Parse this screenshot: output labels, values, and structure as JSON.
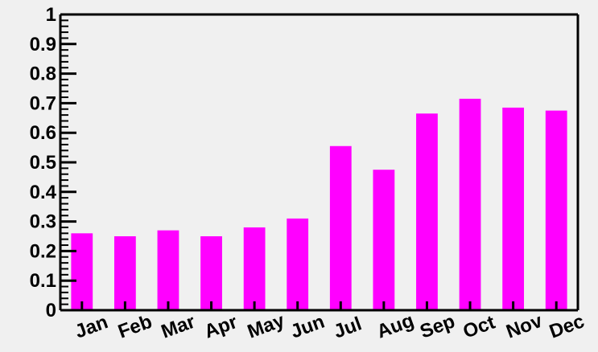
{
  "chart_data": {
    "type": "bar",
    "title": "",
    "xlabel": "",
    "ylabel": "",
    "categories": [
      "Jan",
      "Feb",
      "Mar",
      "Apr",
      "May",
      "Jun",
      "Jul",
      "Aug",
      "Sep",
      "Oct",
      "Nov",
      "Dec"
    ],
    "values": [
      0.26,
      0.25,
      0.27,
      0.25,
      0.28,
      0.31,
      0.555,
      0.475,
      0.665,
      0.715,
      0.685,
      0.675
    ],
    "ylim": [
      0,
      1
    ],
    "y_ticks": [
      "0",
      "0.1",
      "0.2",
      "0.3",
      "0.4",
      "0.5",
      "0.6",
      "0.7",
      "0.8",
      "0.9",
      "1"
    ],
    "grid": false,
    "legend": "none",
    "bar_color": "#ff00ff",
    "background_color": "#f0f0f0",
    "axis_color": "#000000"
  }
}
